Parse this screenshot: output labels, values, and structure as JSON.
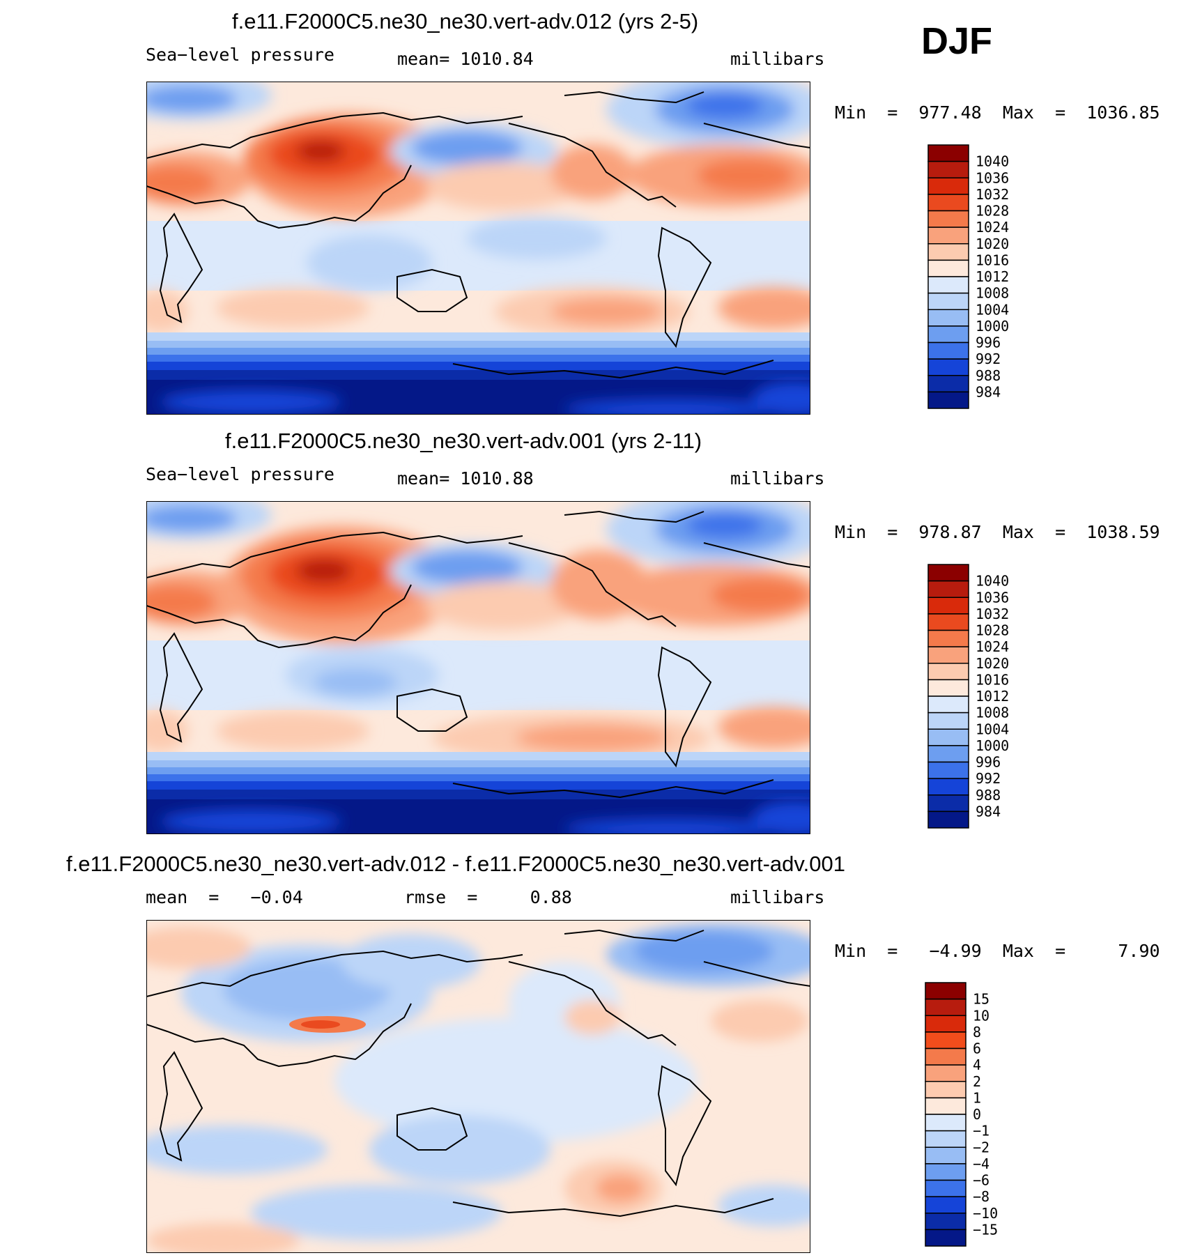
{
  "season": "DJF",
  "chart_data": [
    {
      "type": "heatmap",
      "title": "f.e11.F2000C5.ne30_ne30.vert-adv.012 (yrs 2-5)",
      "left_label": "Sea−level pressure",
      "center_label": "mean=  1010.84",
      "right_label": "millibars",
      "minmax": "Min  =  977.48  Max  =  1036.85",
      "colorbar": {
        "labels": [
          "1040",
          "1036",
          "1032",
          "1028",
          "1024",
          "1020",
          "1016",
          "1012",
          "1008",
          "1004",
          "1000",
          "996",
          "992",
          "988",
          "984"
        ],
        "colors": [
          "#8b0000",
          "#b71c0e",
          "#d92a0b",
          "#ea4a1f",
          "#f47a4b",
          "#f9a27c",
          "#fccbb0",
          "#fde9dc",
          "#dce9fb",
          "#bcd5f8",
          "#98bdf4",
          "#6d9ef0",
          "#3c72ea",
          "#1544d8",
          "#0b2ca8",
          "#041888"
        ]
      }
    },
    {
      "type": "heatmap",
      "title": "f.e11.F2000C5.ne30_ne30.vert-adv.001 (yrs 2-11)",
      "left_label": "Sea−level pressure",
      "center_label": "mean=  1010.88",
      "right_label": "millibars",
      "minmax": "Min  =  978.87  Max  =  1038.59",
      "colorbar": {
        "labels": [
          "1040",
          "1036",
          "1032",
          "1028",
          "1024",
          "1020",
          "1016",
          "1012",
          "1008",
          "1004",
          "1000",
          "996",
          "992",
          "988",
          "984"
        ],
        "colors": [
          "#8b0000",
          "#b71c0e",
          "#d92a0b",
          "#ea4a1f",
          "#f47a4b",
          "#f9a27c",
          "#fccbb0",
          "#fde9dc",
          "#dce9fb",
          "#bcd5f8",
          "#98bdf4",
          "#6d9ef0",
          "#3c72ea",
          "#1544d8",
          "#0b2ca8",
          "#041888"
        ]
      }
    },
    {
      "type": "heatmap",
      "title": "f.e11.F2000C5.ne30_ne30.vert-adv.012 - f.e11.F2000C5.ne30_ne30.vert-adv.001",
      "left_label": "mean  =   −0.04",
      "center_label": "rmse  =     0.88",
      "right_label": "millibars",
      "minmax": "Min  =   −4.99  Max  =     7.90",
      "colorbar": {
        "labels": [
          "15",
          "10",
          "8",
          "6",
          "4",
          "2",
          "1",
          "0",
          "−1",
          "−2",
          "−4",
          "−6",
          "−8",
          "−10",
          "−15"
        ],
        "colors": [
          "#8b0000",
          "#b71c0e",
          "#d92a0b",
          "#f24d1c",
          "#f47a4b",
          "#f9a27c",
          "#fccbb0",
          "#fde9dc",
          "#dce9fb",
          "#bcd5f8",
          "#98bdf4",
          "#6d9ef0",
          "#3c72ea",
          "#1544d8",
          "#0b2ca8",
          "#041888"
        ]
      }
    }
  ]
}
